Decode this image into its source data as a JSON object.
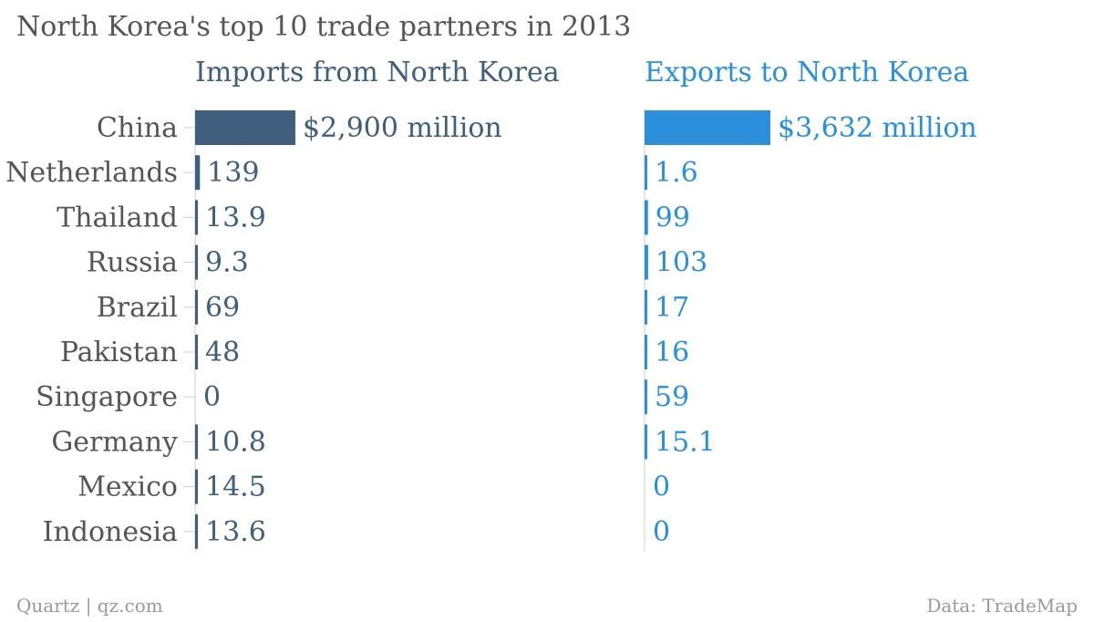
{
  "chart_data": {
    "type": "bar",
    "title": "North Korea's top 10 trade partners in 2013",
    "categories": [
      "China",
      "Netherlands",
      "Thailand",
      "Russia",
      "Brazil",
      "Pakistan",
      "Singapore",
      "Germany",
      "Mexico",
      "Indonesia"
    ],
    "series": [
      {
        "name": "Imports from North Korea",
        "color": "#3f5f7c",
        "values": [
          2900,
          139,
          13.9,
          9.3,
          69,
          48,
          0,
          10.8,
          14.5,
          13.6
        ],
        "labels": [
          "$2,900 million",
          "139",
          "13.9",
          "9.3",
          "69",
          "48",
          "0",
          "10.8",
          "14.5",
          "13.6"
        ]
      },
      {
        "name": "Exports to North Korea",
        "color": "#2b8fdc",
        "values": [
          3632,
          1.6,
          99,
          103,
          17,
          16,
          59,
          15.1,
          0,
          0
        ],
        "labels": [
          "$3,632 million",
          "1.6",
          "99",
          "103",
          "17",
          "16",
          "59",
          "15.1",
          "0",
          "0"
        ]
      }
    ],
    "grid": false,
    "legend": "none"
  },
  "footer": {
    "credit": "Quartz | qz.com",
    "source": "Data: TradeMap"
  }
}
